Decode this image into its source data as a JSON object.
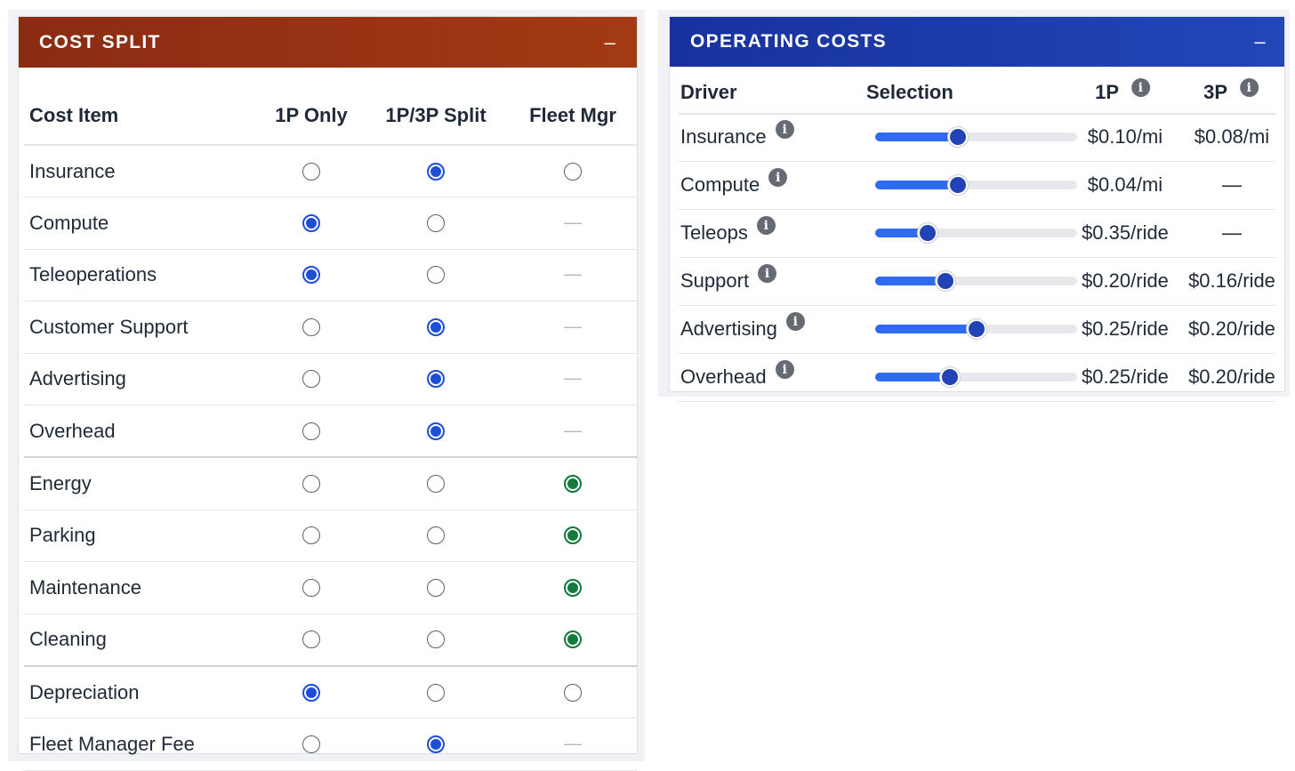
{
  "colors": {
    "cost_split_header_start": "#8a2b12",
    "cost_split_header_end": "#a33a15",
    "operating_header_start": "#17329c",
    "operating_header_end": "#2346b8",
    "radio_selected_blue": "#1d4ed8",
    "radio_selected_green": "#157a3c",
    "slider_fill": "#2e6bf0",
    "slider_thumb": "#2243b5"
  },
  "cost_split": {
    "title": "COST SPLIT",
    "collapse_label": "–",
    "columns": [
      "Cost Item",
      "1P Only",
      "1P/3P Split",
      "Fleet Mgr"
    ],
    "rows": [
      {
        "label": "Insurance",
        "selected": "split",
        "fleet_option": true
      },
      {
        "label": "Compute",
        "selected": "1p",
        "fleet_option": false
      },
      {
        "label": "Teleoperations",
        "selected": "1p",
        "fleet_option": false
      },
      {
        "label": "Customer Support",
        "selected": "split",
        "fleet_option": false
      },
      {
        "label": "Advertising",
        "selected": "split",
        "fleet_option": false
      },
      {
        "label": "Overhead",
        "selected": "split",
        "fleet_option": false
      },
      {
        "label": "Energy",
        "selected": "fleet",
        "fleet_option": true
      },
      {
        "label": "Parking",
        "selected": "fleet",
        "fleet_option": true
      },
      {
        "label": "Maintenance",
        "selected": "fleet",
        "fleet_option": true
      },
      {
        "label": "Cleaning",
        "selected": "fleet",
        "fleet_option": true
      },
      {
        "label": "Depreciation",
        "selected": "1p",
        "fleet_option": true
      },
      {
        "label": "Fleet Manager Fee",
        "selected": "split",
        "fleet_option": false
      }
    ],
    "dash_text": "—"
  },
  "operating_costs": {
    "title": "OPERATING COSTS",
    "collapse_label": "–",
    "columns": {
      "driver": "Driver",
      "selection": "Selection",
      "p1": "1P",
      "p3": "3P"
    },
    "info_glyph": "i",
    "rows": [
      {
        "label": "Insurance",
        "slider_fraction": 0.41,
        "p1": "$0.10/mi",
        "p3": "$0.08/mi"
      },
      {
        "label": "Compute",
        "slider_fraction": 0.41,
        "p1": "$0.04/mi",
        "p3": "—"
      },
      {
        "label": "Teleops",
        "slider_fraction": 0.26,
        "p1": "$0.35/ride",
        "p3": "—"
      },
      {
        "label": "Support",
        "slider_fraction": 0.35,
        "p1": "$0.20/ride",
        "p3": "$0.16/ride"
      },
      {
        "label": "Advertising",
        "slider_fraction": 0.5,
        "p1": "$0.25/ride",
        "p3": "$0.20/ride"
      },
      {
        "label": "Overhead",
        "slider_fraction": 0.37,
        "p1": "$0.25/ride",
        "p3": "$0.20/ride"
      }
    ]
  }
}
